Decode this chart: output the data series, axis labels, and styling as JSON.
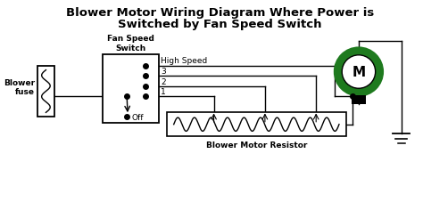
{
  "title_line1": "Blower Motor Wiring Diagram Where Power is",
  "title_line2": "Switched by Fan Speed Switch",
  "title_fontsize": 9.5,
  "bg_color": "#ffffff",
  "line_color": "#000000",
  "fuse_label": "Blower\nfuse",
  "switch_label": "Fan Speed\nSwitch",
  "resistor_label": "Blower Motor Resistor",
  "motor_label": "M",
  "motor_color_outer": "#1e7a1e",
  "figw": 4.74,
  "figh": 2.28,
  "dpi": 100
}
